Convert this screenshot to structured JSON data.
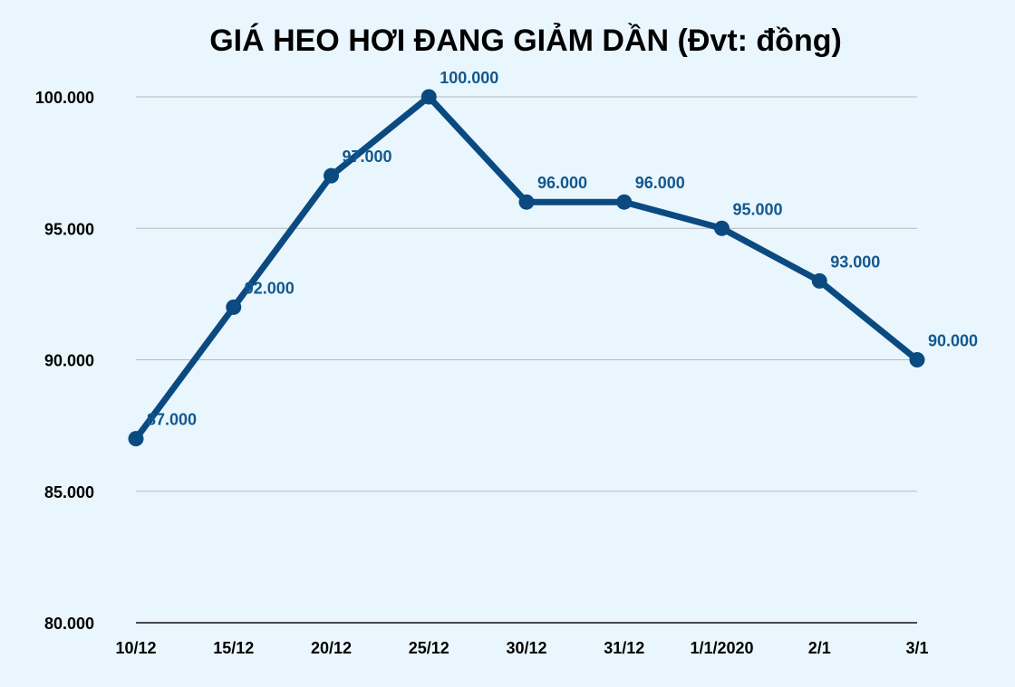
{
  "colors": {
    "background": "#eaf6fd",
    "series": "#0b4a80",
    "label": "#12588f",
    "grid": "#b5b9bc",
    "axis": "#111111"
  },
  "chart_data": {
    "type": "line",
    "title": "GIÁ HEO HƠI ĐANG GIẢM DẦN (Đvt: đồng)",
    "xlabel": "",
    "ylabel": "",
    "categories": [
      "10/12",
      "15/12",
      "20/12",
      "25/12",
      "30/12",
      "31/12",
      "1/1/2020",
      "2/1",
      "3/1"
    ],
    "series": [
      {
        "values": [
          87000,
          92000,
          97000,
          100000,
          96000,
          96000,
          95000,
          93000,
          90000
        ],
        "labels": [
          "87.000",
          "92.000",
          "97.000",
          "100.000",
          "96.000",
          "96.000",
          "95.000",
          "93.000",
          "90.000"
        ]
      }
    ],
    "ylim": [
      80000,
      100000
    ],
    "yticks": [
      80000,
      85000,
      90000,
      95000,
      100000
    ],
    "ytick_labels": [
      "80.000",
      "85.000",
      "90.000",
      "95.000",
      "100.000"
    ],
    "grid": true,
    "legend": "none"
  }
}
